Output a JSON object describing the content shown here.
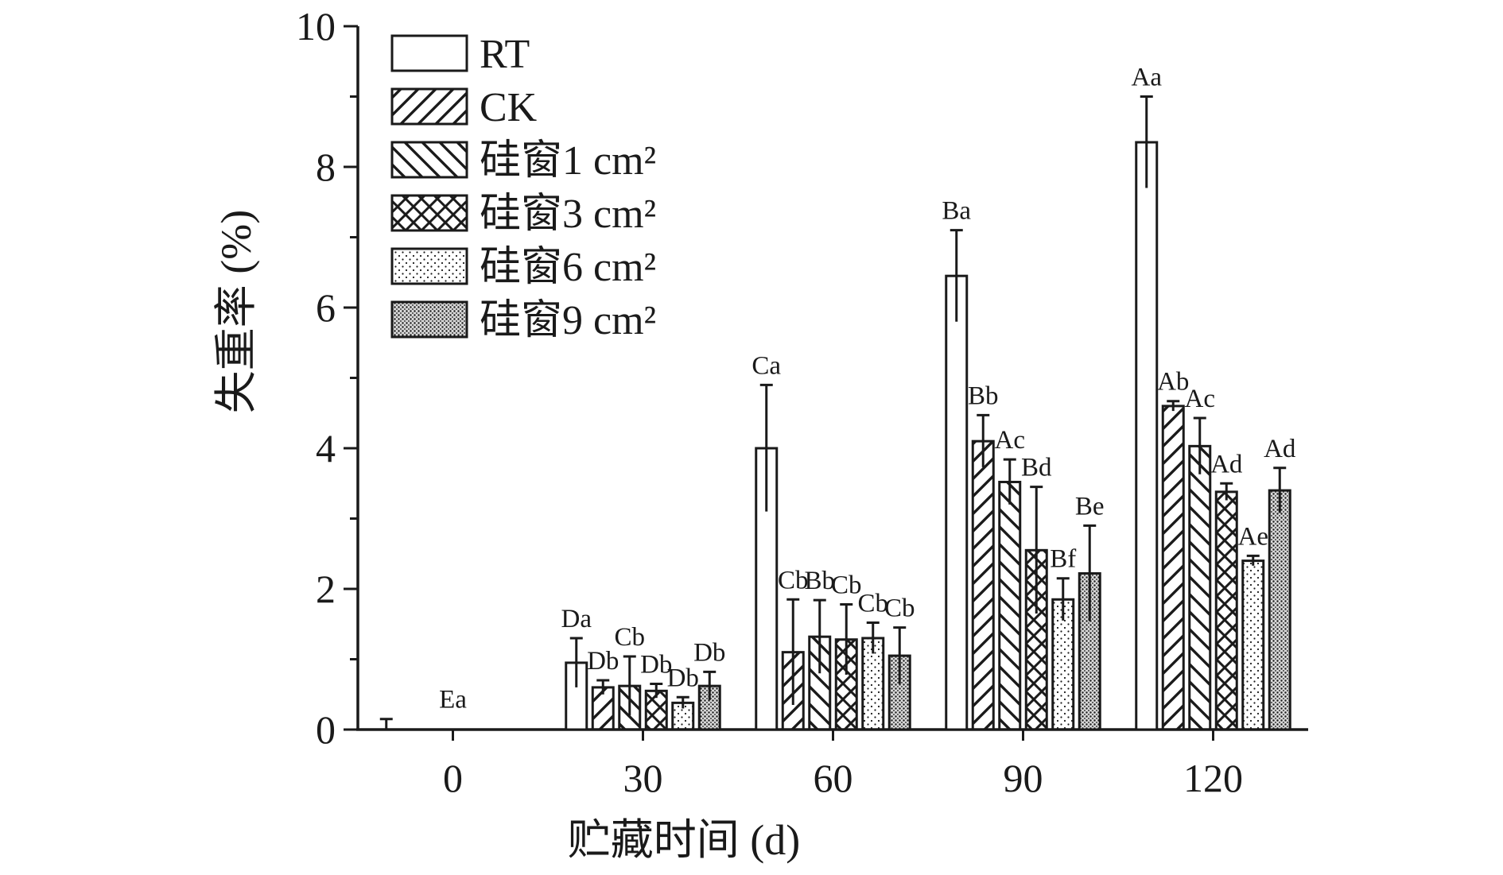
{
  "chart_data": {
    "type": "bar",
    "title": "",
    "xlabel": "贮藏时间 (d)",
    "ylabel": "失重率 (%)",
    "ylim": [
      0,
      10
    ],
    "yticks": [
      "0",
      "2",
      "4",
      "6",
      "8",
      "10"
    ],
    "categories": [
      "0",
      "30",
      "60",
      "90",
      "120"
    ],
    "legend_position": "top-left",
    "series": [
      {
        "name": "RT",
        "pattern": "none",
        "values": [
          0,
          0.95,
          4.0,
          6.45,
          8.35
        ],
        "errors": [
          0.15,
          0.35,
          0.9,
          0.65,
          0.65
        ],
        "labels": [
          "Ea",
          "Da",
          "Ca",
          "Ba",
          "Aa"
        ]
      },
      {
        "name": "CK",
        "pattern": "diagonal-up",
        "values": [
          0,
          0.6,
          1.1,
          4.1,
          4.6
        ],
        "errors": [
          0,
          0.1,
          0.75,
          0.37,
          0.07
        ],
        "labels": [
          "",
          "Db",
          "Cb",
          "Bb",
          "Ab"
        ]
      },
      {
        "name": "硅窗1 cm²",
        "pattern": "diagonal-down",
        "values": [
          0,
          0.62,
          1.32,
          3.52,
          4.03
        ],
        "errors": [
          0,
          0.42,
          0.52,
          0.32,
          0.4
        ],
        "labels": [
          "",
          "Cb",
          "Bb",
          "Ac",
          "Ac"
        ]
      },
      {
        "name": "硅窗3 cm²",
        "pattern": "crosshatch",
        "values": [
          0,
          0.55,
          1.28,
          2.55,
          3.38
        ],
        "errors": [
          0,
          0.1,
          0.5,
          0.9,
          0.12
        ],
        "labels": [
          "",
          "Db",
          "Cb",
          "Bd",
          "Ad"
        ]
      },
      {
        "name": "硅窗6 cm²",
        "pattern": "dots",
        "values": [
          0,
          0.38,
          1.3,
          1.85,
          2.4
        ],
        "errors": [
          0,
          0.08,
          0.22,
          0.3,
          0.07
        ],
        "labels": [
          "",
          "Db",
          "Cb",
          "Bf",
          "Ae"
        ]
      },
      {
        "name": "硅窗9 cm²",
        "pattern": "dense-dots",
        "values": [
          0,
          0.62,
          1.05,
          2.22,
          3.4
        ],
        "errors": [
          0,
          0.2,
          0.4,
          0.68,
          0.32
        ],
        "labels": [
          "",
          "Db",
          "Cb",
          "Be",
          "Ad"
        ]
      }
    ]
  }
}
